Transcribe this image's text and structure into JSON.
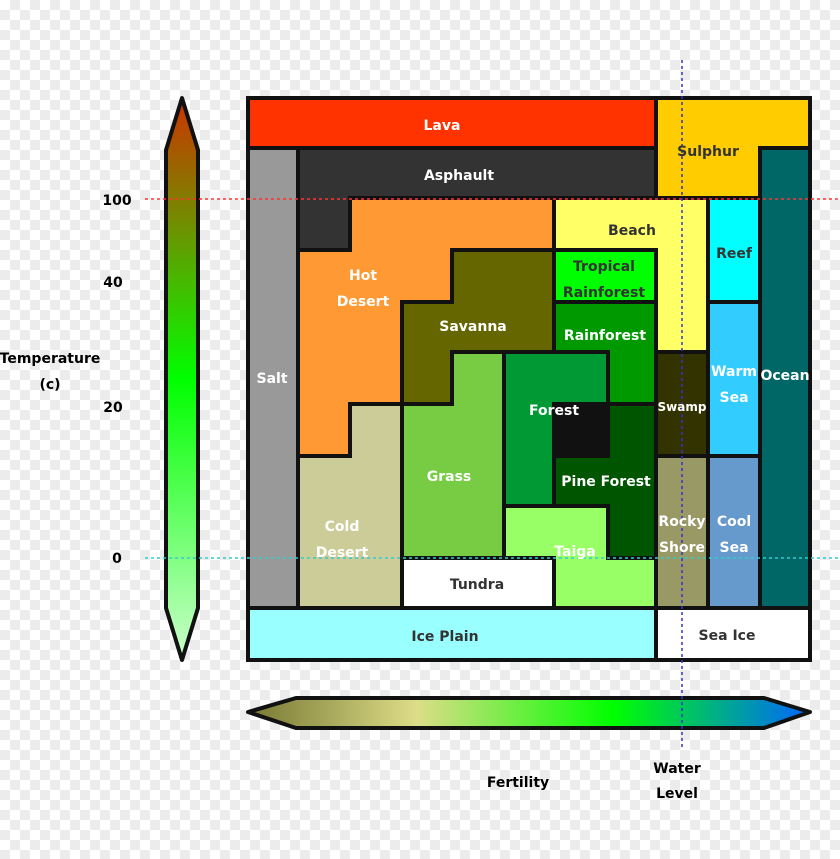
{
  "axes": {
    "temperature_label_line1": "Temperature",
    "temperature_label_line2": "(c)",
    "temperature_ticks": [
      "100",
      "40",
      "20",
      "0"
    ],
    "fertility_label": "Fertility",
    "water_level_label_line1": "Water",
    "water_level_label_line2": "Level"
  },
  "regions": [
    {
      "id": "lava",
      "lines": [
        "Lava"
      ],
      "color": "#ff3300",
      "text": "#ffffff"
    },
    {
      "id": "sulphur",
      "lines": [
        "Sulphur"
      ],
      "color": "#ffcc00",
      "text": "#333333"
    },
    {
      "id": "salt",
      "lines": [
        "Salt"
      ],
      "color": "#999999",
      "text": "#ffffff"
    },
    {
      "id": "asphault",
      "lines": [
        "Asphault"
      ],
      "color": "#333333",
      "text": "#ffffff"
    },
    {
      "id": "ocean",
      "lines": [
        "Ocean"
      ],
      "color": "#006666",
      "text": "#ffffff"
    },
    {
      "id": "hot-desert",
      "lines": [
        "Hot",
        "Desert"
      ],
      "color": "#ff9933",
      "text": "#ffffff"
    },
    {
      "id": "beach",
      "lines": [
        "Beach"
      ],
      "color": "#ffff66",
      "text": "#333333"
    },
    {
      "id": "reef",
      "lines": [
        "Reef"
      ],
      "color": "#00ffff",
      "text": "#333333"
    },
    {
      "id": "tropical-rainforest",
      "lines": [
        "Tropical",
        "Rainforest"
      ],
      "color": "#00ff00",
      "text": "#333333"
    },
    {
      "id": "savanna",
      "lines": [
        "Savanna"
      ],
      "color": "#666600",
      "text": "#ffffff"
    },
    {
      "id": "rainforest",
      "lines": [
        "Rainforest"
      ],
      "color": "#009900",
      "text": "#ffffff"
    },
    {
      "id": "warm-sea",
      "lines": [
        "Warm",
        "Sea"
      ],
      "color": "#33ccff",
      "text": "#ffffff"
    },
    {
      "id": "swamp",
      "lines": [
        "Swamp"
      ],
      "color": "#333300",
      "text": "#ffffff"
    },
    {
      "id": "forest",
      "lines": [
        "Forest"
      ],
      "color": "#009933",
      "text": "#ffffff"
    },
    {
      "id": "grass",
      "lines": [
        "Grass"
      ],
      "color": "#77cc44",
      "text": "#ffffff"
    },
    {
      "id": "pine-forest",
      "lines": [
        "Pine Forest"
      ],
      "color": "#005500",
      "text": "#ffffff"
    },
    {
      "id": "cold-desert",
      "lines": [
        "Cold",
        "Desert"
      ],
      "color": "#cccc99",
      "text": "#ffffff"
    },
    {
      "id": "rocky-shore",
      "lines": [
        "Rocky",
        "Shore"
      ],
      "color": "#999966",
      "text": "#ffffff"
    },
    {
      "id": "cool-sea",
      "lines": [
        "Cool",
        "Sea"
      ],
      "color": "#6699cc",
      "text": "#ffffff"
    },
    {
      "id": "taiga",
      "lines": [
        "Taiga"
      ],
      "color": "#99ff66",
      "text": "#ffffff"
    },
    {
      "id": "tundra",
      "lines": [
        "Tundra"
      ],
      "color": "#ffffff",
      "text": "#333333"
    },
    {
      "id": "ice-plain",
      "lines": [
        "Ice Plain"
      ],
      "color": "#99ffff",
      "text": "#333333"
    },
    {
      "id": "sea-ice",
      "lines": [
        "Sea Ice"
      ],
      "color": "#ffffff",
      "text": "#333333"
    }
  ],
  "colors": {
    "outline": "#111111",
    "temperature_gradient": [
      "#cc3300",
      "#00ff00",
      "#ccffcc"
    ],
    "fertility_gradient": [
      "#777733",
      "#dddd88",
      "#00ff00",
      "#0066ff"
    ],
    "marker_100": "#ff3333",
    "marker_0": "#33cccc",
    "water_level_marker": "#3333cc"
  }
}
